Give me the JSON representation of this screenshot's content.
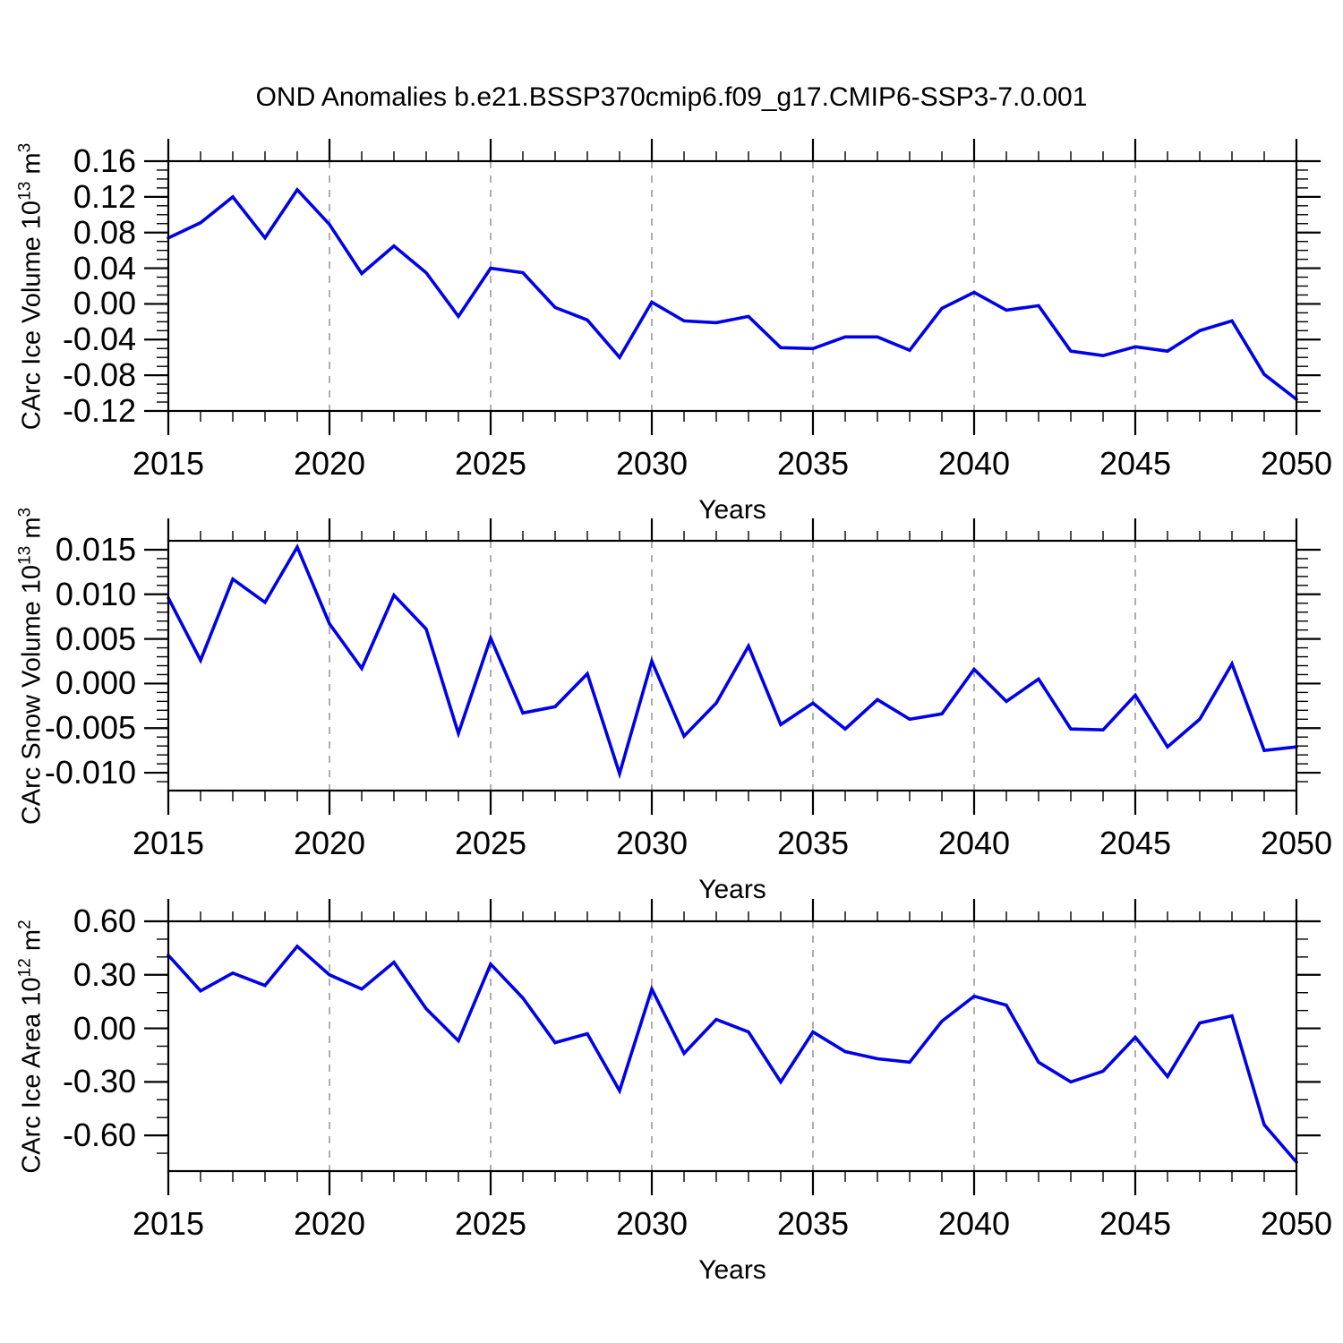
{
  "colors": {
    "line": "#0000e8",
    "grid": "#9a9a9a",
    "axis": "#000000",
    "text": "#000000",
    "background": "#ffffff"
  },
  "chart_data": {
    "type": "line",
    "title": "OND Anomalies b.e21.BSSP370cmip6.f09_g17.CMIP6-SSP3-7.0.001",
    "xlabel": "Years",
    "legend": "none",
    "grid": "vertical-dashed",
    "x": [
      2015,
      2016,
      2017,
      2018,
      2019,
      2020,
      2021,
      2022,
      2023,
      2024,
      2025,
      2026,
      2027,
      2028,
      2029,
      2030,
      2031,
      2032,
      2033,
      2034,
      2035,
      2036,
      2037,
      2038,
      2039,
      2040,
      2041,
      2042,
      2043,
      2044,
      2045,
      2046,
      2047,
      2048,
      2049,
      2050
    ],
    "xticks": [
      2015,
      2020,
      2025,
      2030,
      2035,
      2040,
      2045,
      2050
    ],
    "xtick_labels": [
      "2015",
      "2020",
      "2025",
      "2030",
      "2035",
      "2040",
      "2045",
      "2050"
    ],
    "x_minor_step": 1,
    "grid_x": [
      2020,
      2025,
      2030,
      2035,
      2040,
      2045
    ],
    "charts": [
      {
        "name": "carc-ice-volume",
        "ylabel": "CArc Ice Volume 10^13 m^3",
        "ylabel_parts": [
          "CArc Ice Volume 10",
          "13",
          " m",
          "3"
        ],
        "ylim": [
          -0.12,
          0.16
        ],
        "yticks": [
          0.16,
          0.12,
          0.08,
          0.04,
          0.0,
          -0.04,
          -0.08,
          -0.12
        ],
        "ytick_labels": [
          "0.16",
          "0.12",
          "0.08",
          "0.04",
          "0.00",
          "-0.04",
          "-0.08",
          "-0.12"
        ],
        "y_minor_step": 0.01,
        "values": [
          0.074,
          0.091,
          0.12,
          0.074,
          0.128,
          0.089,
          0.034,
          0.065,
          0.035,
          -0.014,
          0.04,
          0.035,
          -0.004,
          -0.018,
          -0.06,
          0.002,
          -0.019,
          -0.021,
          -0.014,
          -0.049,
          -0.05,
          -0.037,
          -0.037,
          -0.052,
          -0.005,
          0.013,
          -0.007,
          -0.002,
          -0.053,
          -0.058,
          -0.048,
          -0.053,
          -0.03,
          -0.019,
          -0.079,
          -0.107
        ]
      },
      {
        "name": "carc-snow-volume",
        "ylabel": "CArc Snow Volume 10^13 m^3",
        "ylabel_parts": [
          "CArc Snow Volume 10",
          "13",
          " m",
          "3"
        ],
        "ylim": [
          -0.012,
          0.016
        ],
        "yticks": [
          0.015,
          0.01,
          0.005,
          0.0,
          -0.005,
          -0.01
        ],
        "ytick_labels": [
          "0.015",
          "0.010",
          "0.005",
          "0.000",
          "-0.005",
          "-0.010"
        ],
        "y_minor_step": 0.001,
        "values": [
          0.0096,
          0.0026,
          0.0117,
          0.0091,
          0.0153,
          0.0067,
          0.0017,
          0.0099,
          0.0061,
          -0.0056,
          0.0051,
          -0.0033,
          -0.0026,
          0.0011,
          -0.0101,
          0.0025,
          -0.0059,
          -0.0022,
          0.0042,
          -0.0046,
          -0.0022,
          -0.0051,
          -0.0018,
          -0.004,
          -0.0034,
          0.0016,
          -0.002,
          0.0005,
          -0.0051,
          -0.0052,
          -0.0013,
          -0.0071,
          -0.004,
          0.0022,
          -0.0075,
          -0.0071
        ]
      },
      {
        "name": "carc-ice-area",
        "ylabel": "CArc Ice Area 10^12 m^2",
        "ylabel_parts": [
          "CArc Ice Area 10",
          "12",
          " m",
          "2"
        ],
        "ylim": [
          -0.8,
          0.6
        ],
        "yticks": [
          0.6,
          0.3,
          0.0,
          -0.3,
          -0.6
        ],
        "ytick_labels": [
          "0.60",
          "0.30",
          "0.00",
          "-0.30",
          "-0.60"
        ],
        "y_minor_step": 0.1,
        "values": [
          0.41,
          0.21,
          0.31,
          0.24,
          0.46,
          0.3,
          0.22,
          0.37,
          0.11,
          -0.07,
          0.36,
          0.17,
          -0.08,
          -0.03,
          -0.35,
          0.22,
          -0.14,
          0.05,
          -0.02,
          -0.3,
          -0.02,
          -0.13,
          -0.17,
          -0.19,
          0.04,
          0.18,
          0.13,
          -0.19,
          -0.3,
          -0.24,
          -0.05,
          -0.27,
          0.03,
          0.07,
          -0.54,
          -0.75
        ]
      }
    ]
  }
}
